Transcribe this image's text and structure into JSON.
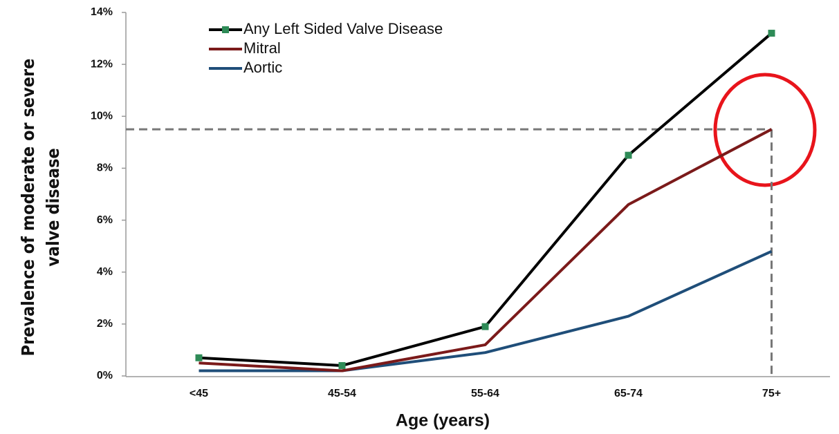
{
  "chart_data": {
    "type": "line",
    "xlabel": "Age (years)",
    "ylabel": [
      "Prevalence of moderate or severe",
      "valve disease"
    ],
    "categories": [
      "<45",
      "45-54",
      "55-64",
      "65-74",
      "75+"
    ],
    "series": [
      {
        "name": "Any Left Sided Valve Disease",
        "color": "#000000",
        "marker_color": "#2e8b57",
        "values": [
          0.7,
          0.4,
          1.9,
          8.5,
          13.2
        ]
      },
      {
        "name": "Mitral",
        "color": "#7b1a1a",
        "values": [
          0.5,
          0.2,
          1.2,
          6.6,
          9.5
        ]
      },
      {
        "name": "Aortic",
        "color": "#1f4e79",
        "values": [
          0.2,
          0.2,
          0.9,
          2.3,
          4.8
        ]
      }
    ],
    "ylim": [
      0,
      14
    ],
    "yticks": [
      {
        "value": 0,
        "label": "0%"
      },
      {
        "value": 2,
        "label": "2%"
      },
      {
        "value": 4,
        "label": "4%"
      },
      {
        "value": 6,
        "label": "6%"
      },
      {
        "value": 8,
        "label": "8%"
      },
      {
        "value": 10,
        "label": "10%"
      },
      {
        "value": 12,
        "label": "12%"
      },
      {
        "value": 14,
        "label": "14%"
      }
    ],
    "legend": "upper left"
  }
}
